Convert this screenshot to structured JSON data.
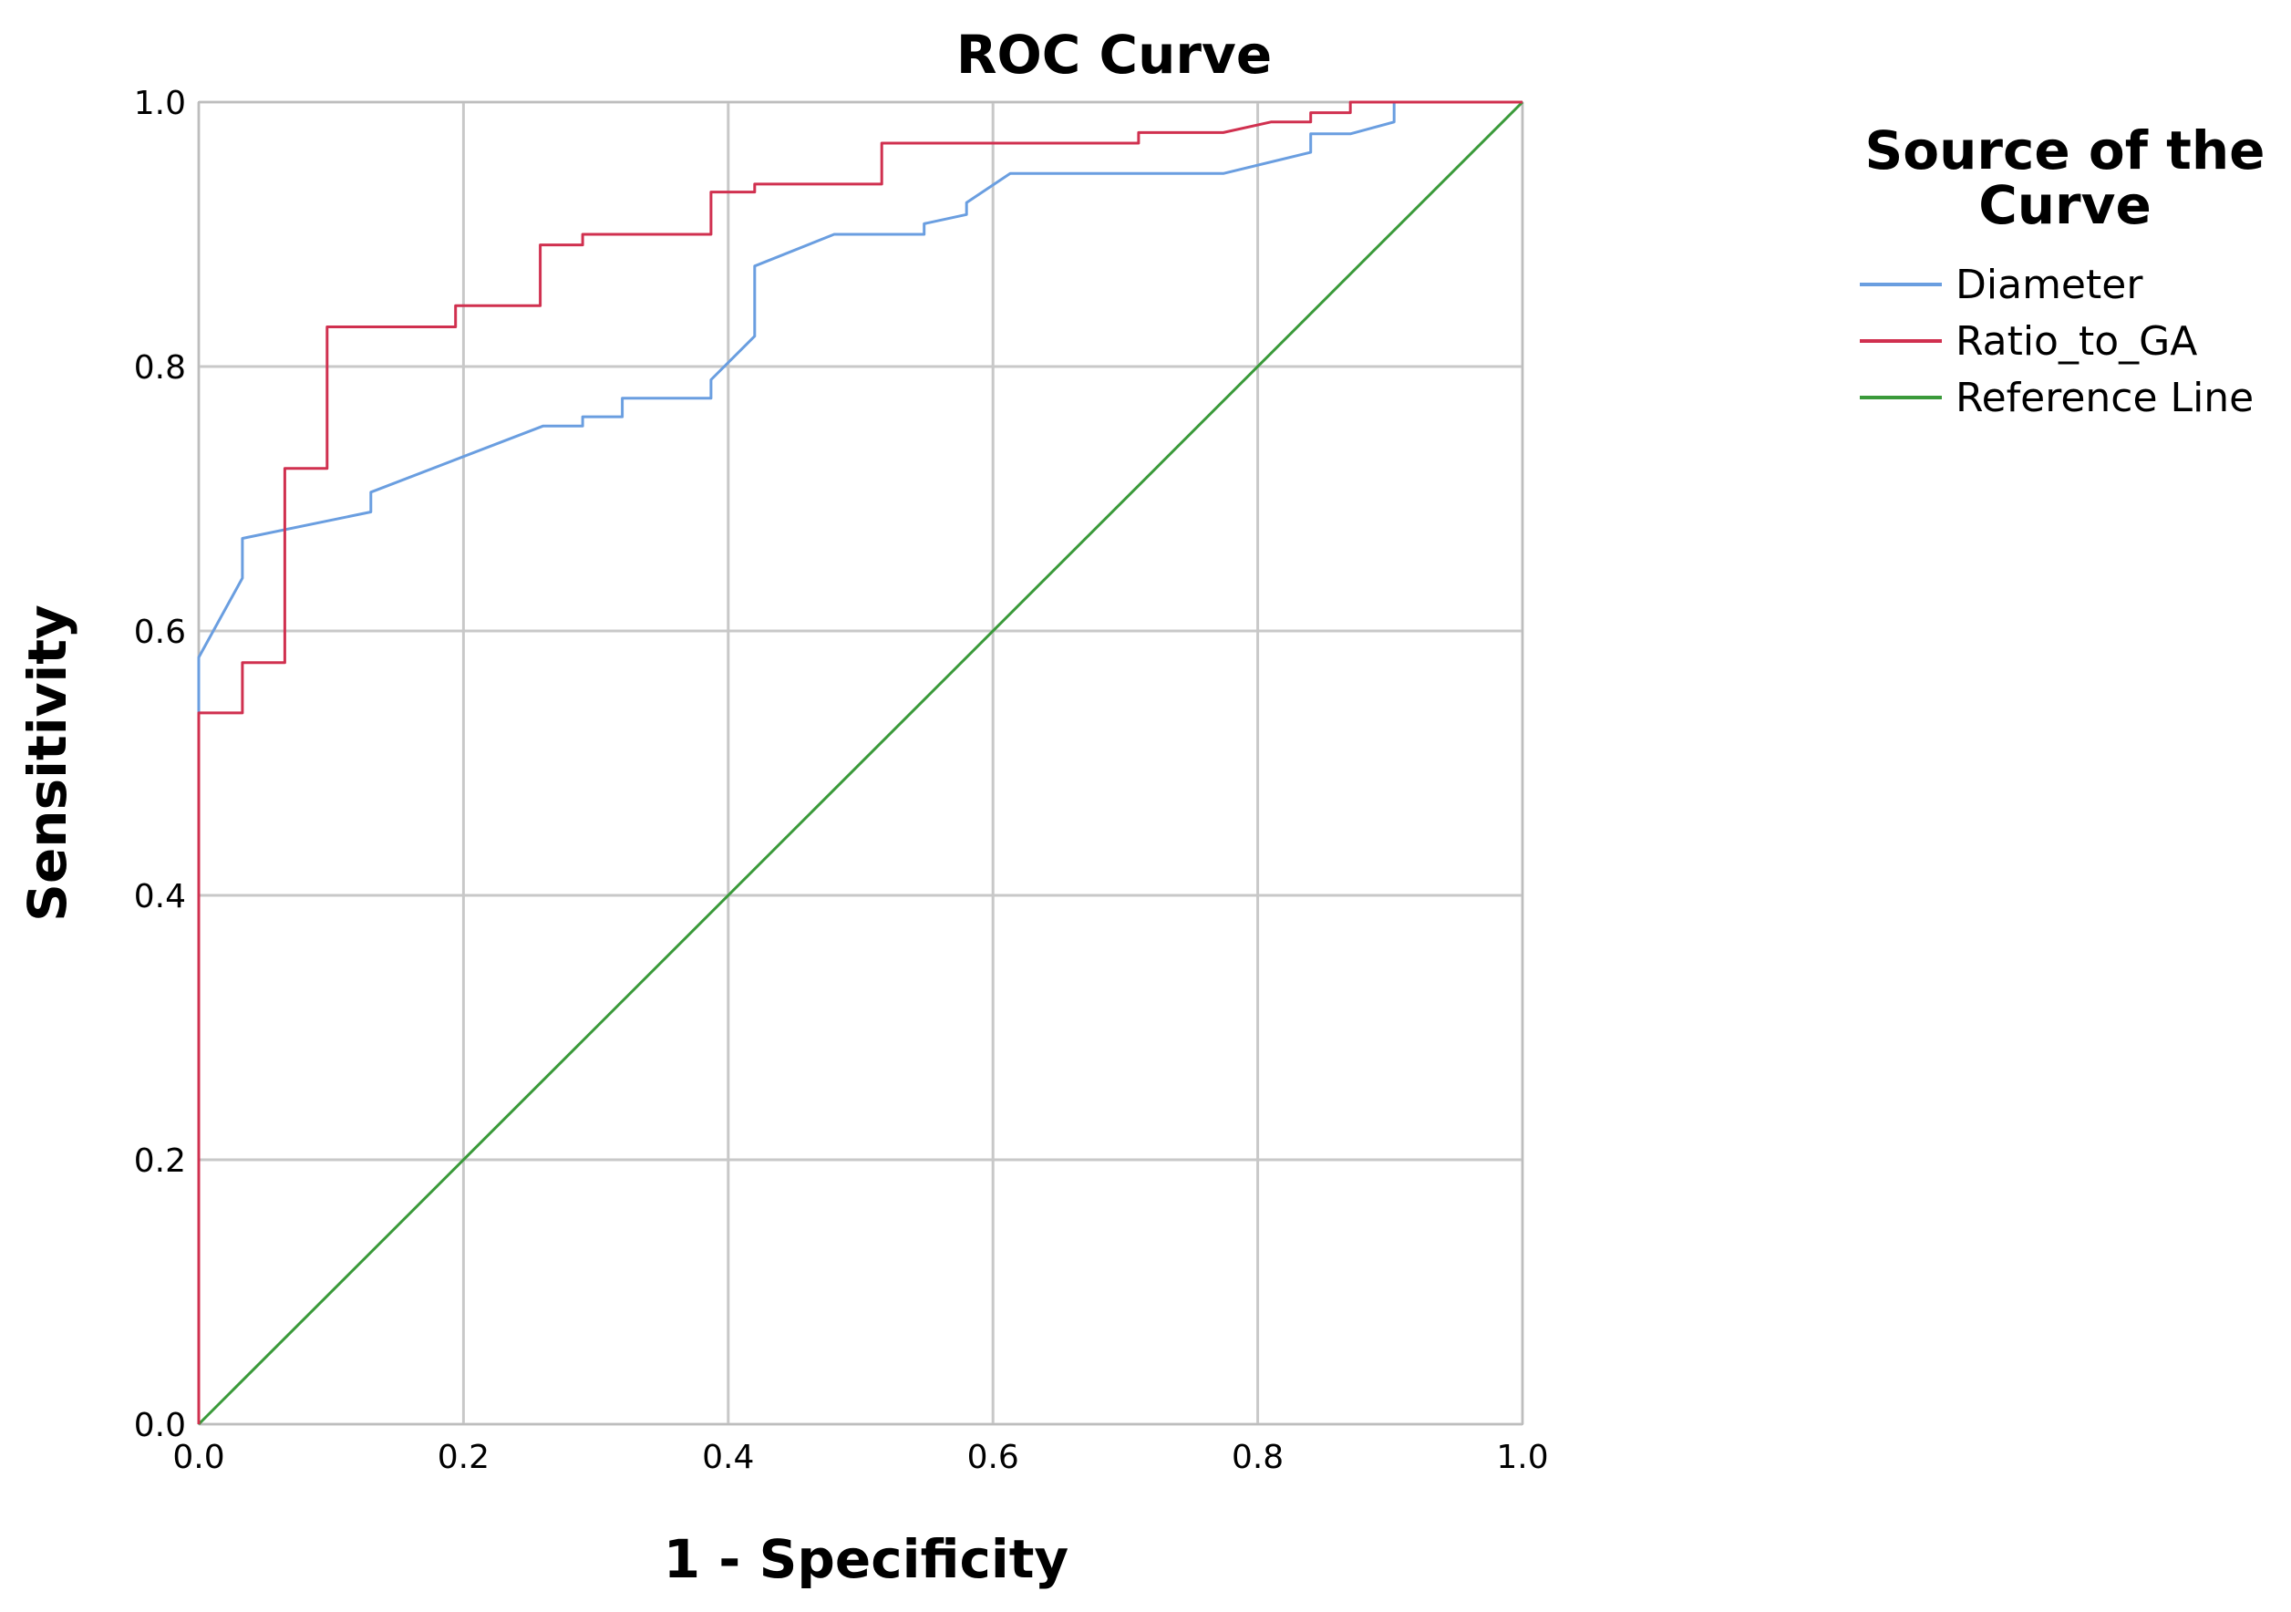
{
  "chart_data": {
    "type": "line",
    "title": "ROC Curve",
    "xlabel": "1 - Specificity",
    "ylabel": "Sensitivity",
    "xlim": [
      0,
      1
    ],
    "ylim": [
      0,
      1
    ],
    "xticks": [
      "0.0",
      "0.2",
      "0.4",
      "0.6",
      "0.8",
      "1.0"
    ],
    "yticks": [
      "0.0",
      "0.2",
      "0.4",
      "0.6",
      "0.8",
      "1.0"
    ],
    "grid": true,
    "legend": {
      "title_lines": [
        "Source of the",
        "Curve"
      ],
      "placement": "right"
    },
    "series": [
      {
        "name": "Diameter",
        "color": "#6a9ee0",
        "points": [
          [
            0,
            0
          ],
          [
            0,
            0.58
          ],
          [
            0.033,
            0.64
          ],
          [
            0.033,
            0.67
          ],
          [
            0.13,
            0.69
          ],
          [
            0.13,
            0.705
          ],
          [
            0.26,
            0.755
          ],
          [
            0.29,
            0.755
          ],
          [
            0.29,
            0.762
          ],
          [
            0.32,
            0.762
          ],
          [
            0.32,
            0.776
          ],
          [
            0.387,
            0.776
          ],
          [
            0.387,
            0.79
          ],
          [
            0.42,
            0.823
          ],
          [
            0.42,
            0.876
          ],
          [
            0.48,
            0.9
          ],
          [
            0.548,
            0.9
          ],
          [
            0.548,
            0.908
          ],
          [
            0.58,
            0.915
          ],
          [
            0.58,
            0.924
          ],
          [
            0.613,
            0.946
          ],
          [
            0.774,
            0.946
          ],
          [
            0.84,
            0.962
          ],
          [
            0.84,
            0.976
          ],
          [
            0.87,
            0.976
          ],
          [
            0.903,
            0.985
          ],
          [
            0.903,
            1.0
          ],
          [
            1.0,
            1.0
          ]
        ]
      },
      {
        "name": "Ratio_to_GA",
        "color": "#d0304f",
        "points": [
          [
            0,
            0
          ],
          [
            0,
            0.538
          ],
          [
            0.033,
            0.538
          ],
          [
            0.033,
            0.576
          ],
          [
            0.065,
            0.576
          ],
          [
            0.065,
            0.723
          ],
          [
            0.097,
            0.723
          ],
          [
            0.097,
            0.83
          ],
          [
            0.194,
            0.83
          ],
          [
            0.194,
            0.846
          ],
          [
            0.258,
            0.846
          ],
          [
            0.258,
            0.892
          ],
          [
            0.29,
            0.892
          ],
          [
            0.29,
            0.9
          ],
          [
            0.387,
            0.9
          ],
          [
            0.387,
            0.932
          ],
          [
            0.42,
            0.932
          ],
          [
            0.42,
            0.938
          ],
          [
            0.516,
            0.938
          ],
          [
            0.516,
            0.969
          ],
          [
            0.71,
            0.969
          ],
          [
            0.71,
            0.977
          ],
          [
            0.774,
            0.977
          ],
          [
            0.774,
            0.977
          ],
          [
            0.81,
            0.985
          ],
          [
            0.84,
            0.985
          ],
          [
            0.84,
            0.992
          ],
          [
            0.87,
            0.992
          ],
          [
            0.87,
            1.0
          ],
          [
            1.0,
            1.0
          ]
        ]
      },
      {
        "name": "Reference Line",
        "color": "#3a9a3a",
        "points": [
          [
            0,
            0
          ],
          [
            1,
            1
          ]
        ]
      }
    ]
  }
}
